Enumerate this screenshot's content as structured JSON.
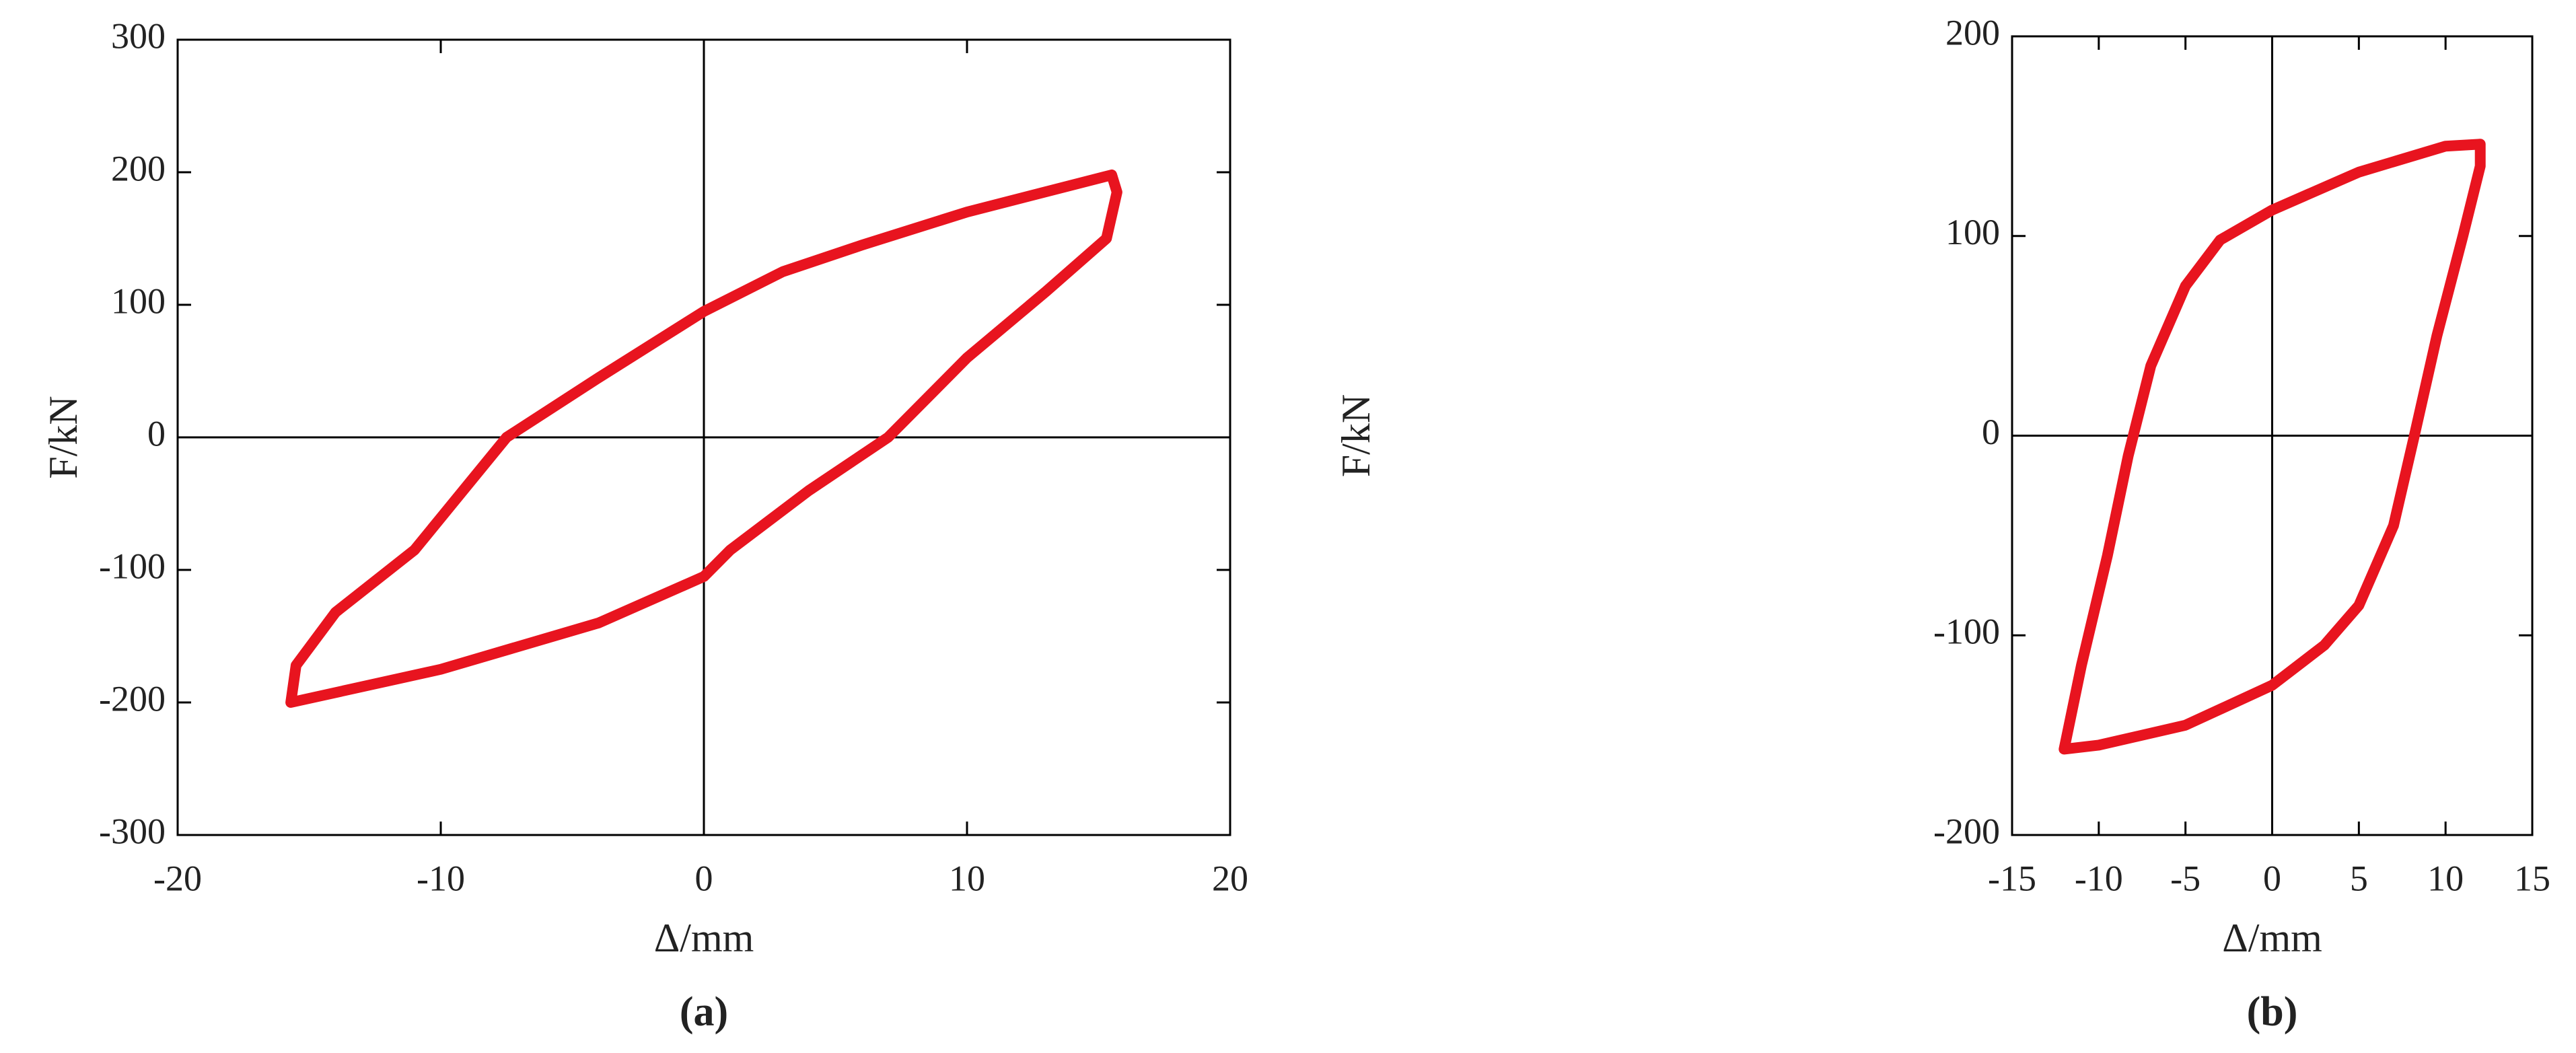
{
  "chart_data": [
    {
      "type": "line",
      "caption": "(a)",
      "x_label": "Δ/mm",
      "y_label": "F/kN",
      "color": "#e8141f",
      "xlim": [
        -20,
        20
      ],
      "ylim": [
        -300,
        300
      ],
      "xticks": [
        -20,
        -10,
        0,
        10,
        20
      ],
      "yticks": [
        -300,
        -200,
        -100,
        0,
        100,
        200,
        300
      ],
      "x": [
        -15.7,
        -15.5,
        -14,
        -11,
        -7.5,
        -4,
        0,
        3,
        6,
        10,
        15.5,
        15.7,
        15.3,
        13,
        10,
        7,
        4,
        1,
        0,
        -4,
        -10,
        -15.7
      ],
      "values": [
        -200,
        -172,
        -132,
        -85,
        0,
        45,
        95,
        125,
        145,
        170,
        198,
        185,
        150,
        110,
        60,
        0,
        -40,
        -85,
        -105,
        -140,
        -175,
        -200
      ]
    },
    {
      "type": "line",
      "caption": "(b)",
      "x_label": "Δ/mm",
      "y_label": "F/kN",
      "color": "#e8141f",
      "xlim": [
        -15,
        15
      ],
      "ylim": [
        -200,
        200
      ],
      "xticks": [
        -15,
        -10,
        -5,
        0,
        5,
        10,
        15
      ],
      "yticks": [
        -200,
        -100,
        0,
        100,
        200
      ],
      "x": [
        -12,
        -11,
        -9.5,
        -8.3,
        -7,
        -5,
        -3,
        0,
        5,
        10,
        12,
        12,
        11,
        9.5,
        8.2,
        7,
        5,
        3,
        0,
        -5,
        -10,
        -12
      ],
      "values": [
        -157,
        -115,
        -60,
        -10,
        35,
        75,
        98,
        113,
        132,
        145,
        146,
        135,
        100,
        50,
        0,
        -45,
        -85,
        -105,
        -125,
        -145,
        -155,
        -157
      ]
    }
  ]
}
